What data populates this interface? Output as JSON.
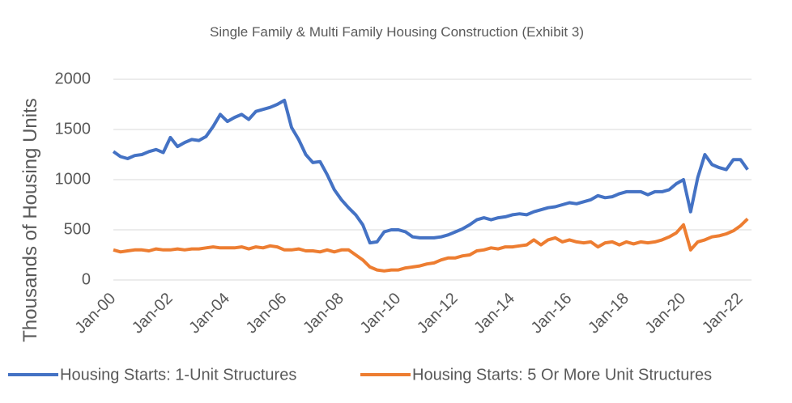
{
  "chart_data": {
    "type": "line",
    "title": "Single Family & Multi Family Housing Construction (Exhibit 3)",
    "y_label": "Thousands of Housing Units",
    "categories": [
      "Jan-00",
      null,
      null,
      null,
      null,
      null,
      null,
      null,
      "Jan-02",
      null,
      null,
      null,
      null,
      null,
      null,
      null,
      "Jan-04",
      null,
      null,
      null,
      null,
      null,
      null,
      null,
      "Jan-06",
      null,
      null,
      null,
      null,
      null,
      null,
      null,
      "Jan-08",
      null,
      null,
      null,
      null,
      null,
      null,
      null,
      "Jan-10",
      null,
      null,
      null,
      null,
      null,
      null,
      null,
      "Jan-12",
      null,
      null,
      null,
      null,
      null,
      null,
      null,
      "Jan-14",
      null,
      null,
      null,
      null,
      null,
      null,
      null,
      "Jan-16",
      null,
      null,
      null,
      null,
      null,
      null,
      null,
      "Jan-18",
      null,
      null,
      null,
      null,
      null,
      null,
      null,
      "Jan-20",
      null,
      null,
      null,
      null,
      null,
      null,
      null,
      "Jan-22",
      null
    ],
    "series": [
      {
        "name": "Housing Starts: 1-Unit Structures",
        "color": "#4472c4",
        "values": [
          1280,
          1230,
          1210,
          1240,
          1250,
          1280,
          1300,
          1270,
          1420,
          1330,
          1370,
          1400,
          1390,
          1430,
          1530,
          1650,
          1580,
          1620,
          1650,
          1600,
          1680,
          1700,
          1720,
          1750,
          1790,
          1520,
          1400,
          1250,
          1170,
          1180,
          1050,
          900,
          800,
          720,
          650,
          550,
          370,
          380,
          480,
          500,
          500,
          480,
          430,
          420,
          420,
          420,
          430,
          450,
          480,
          510,
          550,
          600,
          620,
          600,
          620,
          630,
          650,
          660,
          650,
          680,
          700,
          720,
          730,
          750,
          770,
          760,
          780,
          800,
          840,
          820,
          830,
          860,
          880,
          880,
          880,
          850,
          880,
          880,
          900,
          960,
          1000,
          680,
          1020,
          1250,
          1150,
          1120,
          1100,
          1200,
          1200,
          1100
        ]
      },
      {
        "name": "Housing Starts: 5 Or More Unit Structures",
        "color": "#ed7d31",
        "values": [
          300,
          280,
          290,
          300,
          300,
          290,
          310,
          300,
          300,
          310,
          300,
          310,
          310,
          320,
          330,
          320,
          320,
          320,
          330,
          310,
          330,
          320,
          340,
          330,
          300,
          300,
          310,
          290,
          290,
          280,
          300,
          280,
          300,
          300,
          250,
          200,
          130,
          100,
          90,
          100,
          100,
          120,
          130,
          140,
          160,
          170,
          200,
          220,
          220,
          240,
          250,
          290,
          300,
          320,
          310,
          330,
          330,
          340,
          350,
          400,
          350,
          400,
          420,
          380,
          400,
          380,
          370,
          380,
          330,
          370,
          380,
          350,
          380,
          360,
          380,
          370,
          380,
          400,
          430,
          470,
          550,
          300,
          380,
          400,
          430,
          440,
          460,
          490,
          540,
          610
        ]
      }
    ],
    "ylim": [
      0,
      2000
    ],
    "yticks": [
      0,
      500,
      1000,
      1500,
      2000
    ],
    "grid": true,
    "legend": "bottom"
  }
}
